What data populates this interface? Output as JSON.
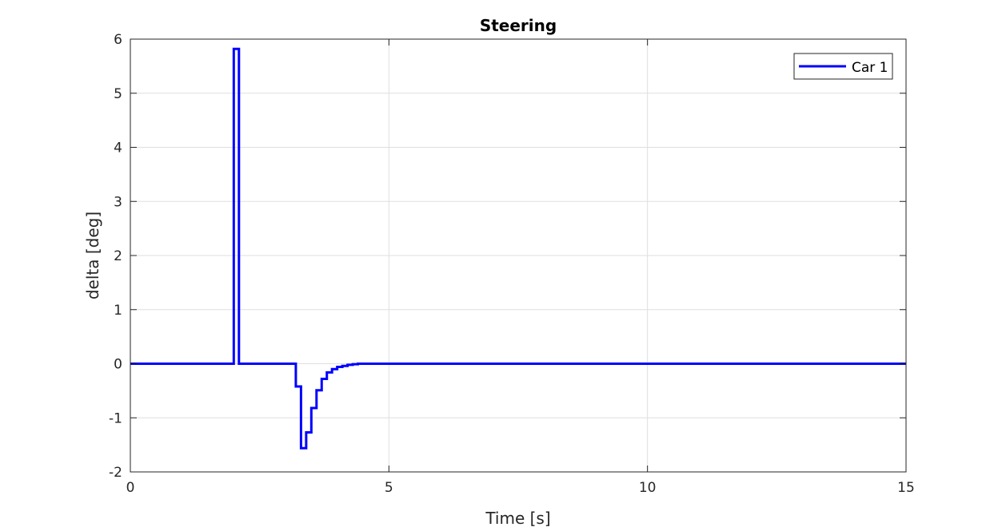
{
  "chart_data": {
    "type": "line",
    "title": "Steering",
    "xlabel": "Time [s]",
    "ylabel": "delta [deg]",
    "xlim": [
      0,
      15
    ],
    "ylim": [
      -2,
      6
    ],
    "xticks": [
      0,
      5,
      10,
      15
    ],
    "yticks": [
      -2,
      -1,
      0,
      1,
      2,
      3,
      4,
      5,
      6
    ],
    "grid": true,
    "legend_position": "top-right",
    "series": [
      {
        "name": "Car 1",
        "color": "#0000ff",
        "step": true,
        "x": [
          0,
          2.0,
          2.1,
          3.2,
          3.3,
          3.4,
          3.5,
          3.6,
          3.7,
          3.8,
          3.9,
          4.0,
          4.1,
          4.2,
          4.3,
          4.4,
          15
        ],
        "y": [
          0,
          5.82,
          0,
          -0.42,
          -1.56,
          -1.27,
          -0.82,
          -0.49,
          -0.28,
          -0.16,
          -0.1,
          -0.06,
          -0.04,
          -0.02,
          -0.01,
          0,
          0
        ]
      }
    ]
  }
}
